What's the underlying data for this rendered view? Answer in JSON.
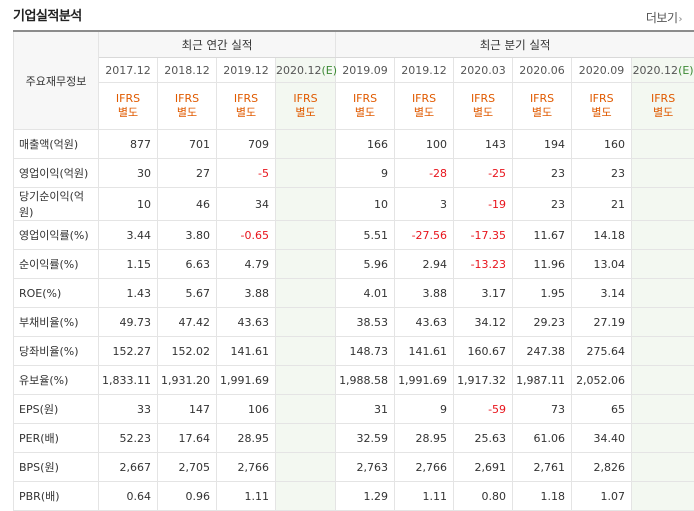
{
  "section": {
    "title": "기업실적분석",
    "more_label": "더보기",
    "more_icon": "chevron-right-icon"
  },
  "header": {
    "label_head": "주요재무정보",
    "annual_title": "최근 연간 실적",
    "quarter_title": "최근 분기 실적",
    "annual_periods": [
      "2017.12",
      "2018.12",
      "2019.12",
      "2020.12"
    ],
    "quarter_periods": [
      "2019.09",
      "2019.12",
      "2020.03",
      "2020.06",
      "2020.09",
      "2020.12"
    ],
    "estimate_mark": "(E)",
    "ifrs_line1": "IFRS",
    "ifrs_line2": "별도"
  },
  "rows": [
    {
      "label": "매출액(억원)",
      "values": [
        "877",
        "701",
        "709",
        "",
        "166",
        "100",
        "143",
        "194",
        "160",
        ""
      ]
    },
    {
      "label": "영업이익(억원)",
      "values": [
        "30",
        "27",
        "-5",
        "",
        "9",
        "-28",
        "-25",
        "23",
        "23",
        ""
      ]
    },
    {
      "label": "당기순이익(억원)",
      "values": [
        "10",
        "46",
        "34",
        "",
        "10",
        "3",
        "-19",
        "23",
        "21",
        ""
      ]
    },
    {
      "label": "영업이익률(%)",
      "values": [
        "3.44",
        "3.80",
        "-0.65",
        "",
        "5.51",
        "-27.56",
        "-17.35",
        "11.67",
        "14.18",
        ""
      ]
    },
    {
      "label": "순이익률(%)",
      "values": [
        "1.15",
        "6.63",
        "4.79",
        "",
        "5.96",
        "2.94",
        "-13.23",
        "11.96",
        "13.04",
        ""
      ]
    },
    {
      "label": "ROE(%)",
      "values": [
        "1.43",
        "5.67",
        "3.88",
        "",
        "4.01",
        "3.88",
        "3.17",
        "1.95",
        "3.14",
        ""
      ]
    },
    {
      "label": "부채비율(%)",
      "values": [
        "49.73",
        "47.42",
        "43.63",
        "",
        "38.53",
        "43.63",
        "34.12",
        "29.23",
        "27.19",
        ""
      ]
    },
    {
      "label": "당좌비율(%)",
      "values": [
        "152.27",
        "152.02",
        "141.61",
        "",
        "148.73",
        "141.61",
        "160.67",
        "247.38",
        "275.64",
        ""
      ]
    },
    {
      "label": "유보율(%)",
      "values": [
        "1,833.11",
        "1,931.20",
        "1,991.69",
        "",
        "1,988.58",
        "1,991.69",
        "1,917.32",
        "1,987.11",
        "2,052.06",
        ""
      ]
    },
    {
      "label": "EPS(원)",
      "values": [
        "33",
        "147",
        "106",
        "",
        "31",
        "9",
        "-59",
        "73",
        "65",
        ""
      ]
    },
    {
      "label": "PER(배)",
      "values": [
        "52.23",
        "17.64",
        "28.95",
        "",
        "32.59",
        "28.95",
        "25.63",
        "61.06",
        "34.40",
        ""
      ]
    },
    {
      "label": "BPS(원)",
      "values": [
        "2,667",
        "2,705",
        "2,766",
        "",
        "2,763",
        "2,766",
        "2,691",
        "2,761",
        "2,826",
        ""
      ]
    },
    {
      "label": "PBR(배)",
      "values": [
        "0.64",
        "0.96",
        "1.11",
        "",
        "1.29",
        "1.11",
        "0.80",
        "1.18",
        "1.07",
        ""
      ]
    }
  ],
  "colors": {
    "negative": "#e8141c",
    "ifrs": "#e05a00",
    "estimate_bg": "#f3f8f1",
    "estimate_mark": "#3d8a35"
  }
}
